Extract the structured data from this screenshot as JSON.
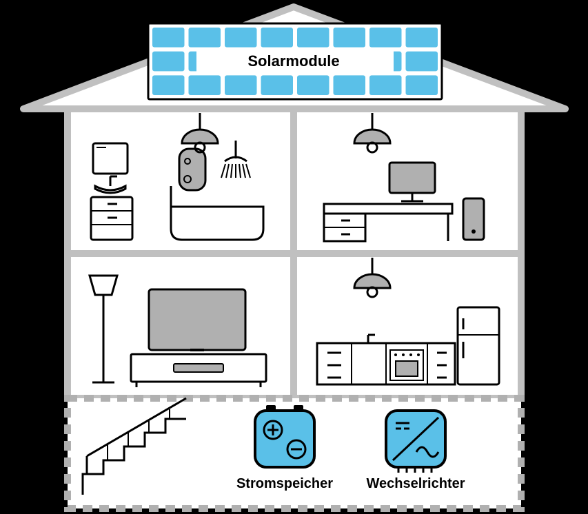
{
  "labels": {
    "solar": "Solarmodule",
    "battery": "Stromspeicher",
    "inverter": "Wechselrichter"
  },
  "colors": {
    "bg": "#000000",
    "house_fill": "#ffffff",
    "outline": "#000000",
    "roof_border": "#c0c0c0",
    "wall_border": "#c0c0c0",
    "panel_fill": "#5ac0e8",
    "panel_border": "#5ac0e8",
    "panel_frame": "#000000",
    "device_fill": "#5ac0e8",
    "screen_fill": "#b0b0b0",
    "lamp_fill": "#b0b0b0",
    "text": "#000000",
    "dash": "#b0b0b0"
  },
  "sizes": {
    "label_font": 20,
    "solar_font": 22,
    "stroke_thin": 3,
    "stroke_med": 4,
    "stroke_thick": 10,
    "dash_w": 14,
    "dash_gap": 10
  },
  "solar_grid": {
    "cols": 8,
    "rows": 3
  }
}
